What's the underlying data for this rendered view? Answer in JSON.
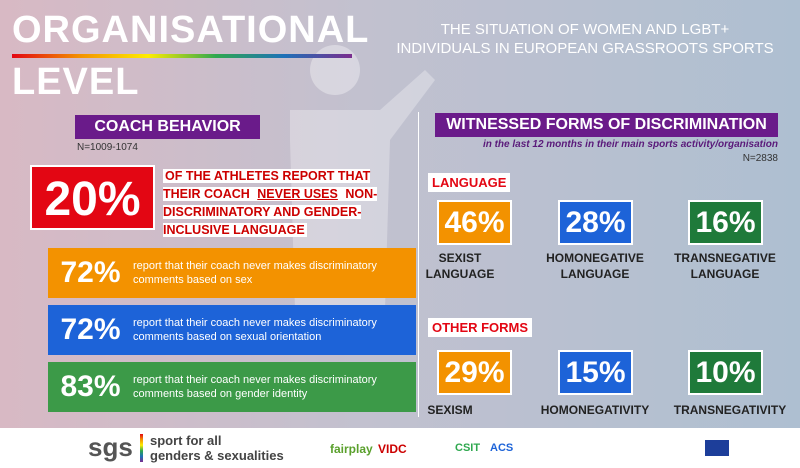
{
  "header": {
    "title_line1": "ORGANISATIONAL",
    "title_line2": "LEVEL",
    "subtitle_line1": "THE SITUATION OF WOMEN AND LGBT+",
    "subtitle_line2": "INDIVIDUALS IN EUROPEAN GRASSROOTS SPORTS"
  },
  "coach_behavior": {
    "heading": "COACH BEHAVIOR",
    "sample": "N=1009-1074",
    "headline": {
      "value": "20%",
      "text_start": "OF THE ATHLETES REPORT THAT THEIR COACH ",
      "text_emphasis": "NEVER USES",
      "text_end": " NON-DISCRIMINATORY AND GENDER-INCLUSIVE LANGUAGE"
    },
    "items": [
      {
        "value": "72%",
        "text": "report that their coach never makes discriminatory comments based on sex"
      },
      {
        "value": "72%",
        "text": "report that their coach never makes discriminatory comments based on sexual orientation"
      },
      {
        "value": "83%",
        "text": "report that their coach never makes discriminatory comments based on gender identity"
      }
    ]
  },
  "witnessed": {
    "heading": "WITNESSED FORMS OF DISCRIMINATION",
    "subtitle": "in the last 12 months in their main sports activity/organisation",
    "sample": "N=2838",
    "groups": [
      {
        "label": "LANGUAGE",
        "items": [
          {
            "value": "46%",
            "label": "SEXIST LANGUAGE"
          },
          {
            "value": "28%",
            "label": "HOMONEGATIVE LANGUAGE"
          },
          {
            "value": "16%",
            "label": "TRANSNEGATIVE LANGUAGE"
          }
        ]
      },
      {
        "label": "OTHER FORMS",
        "items": [
          {
            "value": "29%",
            "label": "SEXISM"
          },
          {
            "value": "15%",
            "label": "HOMONEGATIVITY"
          },
          {
            "value": "10%",
            "label": "TRANSNEGATIVITY"
          }
        ]
      }
    ]
  },
  "footer": {
    "brand": "sgs",
    "tagline_line1": "sport for all",
    "tagline_line2": "genders & sexualities",
    "partners": [
      "fairplay",
      "VIDC",
      "CSIT",
      "ACS"
    ]
  }
}
